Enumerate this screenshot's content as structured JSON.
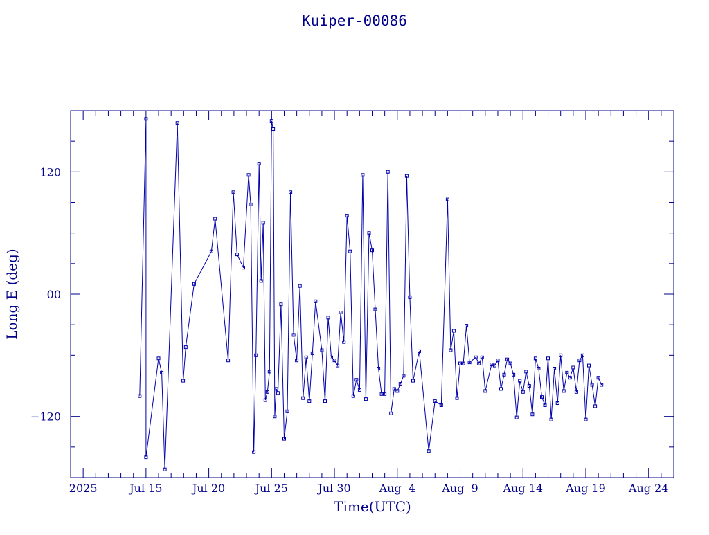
{
  "colors": {
    "axis": "#00008b",
    "series": "#0000aa",
    "background": "#ffffff"
  },
  "chart_data": {
    "type": "line",
    "title": "Kuiper-00086",
    "xlabel": "Time(UTC)",
    "ylabel": "Long E (deg)",
    "x_is_date": true,
    "xlim": [
      "2025-07-09",
      "2025-08-26"
    ],
    "ylim": [
      -180,
      180
    ],
    "y_wraps_at_180": true,
    "grid": false,
    "legend": "none",
    "marker": "square",
    "x_tick_labels": [
      {
        "date": "2025-07-10",
        "label": "2025"
      },
      {
        "date": "2025-07-15",
        "label": "Jul 15"
      },
      {
        "date": "2025-07-20",
        "label": "Jul 20"
      },
      {
        "date": "2025-07-25",
        "label": "Jul 25"
      },
      {
        "date": "2025-07-30",
        "label": "Jul 30"
      },
      {
        "date": "2025-08-04",
        "label": "Aug  4"
      },
      {
        "date": "2025-08-09",
        "label": "Aug  9"
      },
      {
        "date": "2025-08-14",
        "label": "Aug 14"
      },
      {
        "date": "2025-08-19",
        "label": "Aug 19"
      },
      {
        "date": "2025-08-24",
        "label": "Aug 24"
      }
    ],
    "y_tick_labels": [
      {
        "value": 120,
        "label": "120"
      },
      {
        "value": 0,
        "label": "00"
      },
      {
        "value": -120,
        "label": "−120"
      }
    ],
    "series": [
      {
        "x": [
          "2025-07-14 12:00",
          "2025-07-15 00:00",
          "2025-07-15 00:05",
          "2025-07-16 00:00",
          "2025-07-16 06:00",
          "2025-07-16 12:00",
          "2025-07-17 12:00",
          "2025-07-17 23:00",
          "2025-07-18 04:00",
          "2025-07-18 20:00",
          "2025-07-20 05:00",
          "2025-07-20 12:00",
          "2025-07-21 13:00",
          "2025-07-21 23:00",
          "2025-07-22 06:00",
          "2025-07-22 18:00",
          "2025-07-23 04:00",
          "2025-07-23 08:00",
          "2025-07-23 14:00",
          "2025-07-23 18:00",
          "2025-07-24 00:00",
          "2025-07-24 04:00",
          "2025-07-24 08:00",
          "2025-07-24 12:00",
          "2025-07-24 16:00",
          "2025-07-24 20:00",
          "2025-07-25 00:00",
          "2025-07-25 03:00",
          "2025-07-25 06:00",
          "2025-07-25 09:00",
          "2025-07-25 12:00",
          "2025-07-25 18:00",
          "2025-07-26 00:00",
          "2025-07-26 06:00",
          "2025-07-26 12:00",
          "2025-07-26 18:00",
          "2025-07-27 00:00",
          "2025-07-27 06:00",
          "2025-07-27 12:00",
          "2025-07-27 18:00",
          "2025-07-28 00:00",
          "2025-07-28 06:00",
          "2025-07-28 12:00",
          "2025-07-29 00:00",
          "2025-07-29 06:00",
          "2025-07-29 12:00",
          "2025-07-29 18:00",
          "2025-07-30 00:00",
          "2025-07-30 06:00",
          "2025-07-30 12:00",
          "2025-07-30 18:00",
          "2025-07-31 00:00",
          "2025-07-31 06:00",
          "2025-07-31 12:00",
          "2025-07-31 18:00",
          "2025-08-01 00:00",
          "2025-08-01 06:00",
          "2025-08-01 12:00",
          "2025-08-01 18:00",
          "2025-08-02 00:00",
          "2025-08-02 06:00",
          "2025-08-02 12:00",
          "2025-08-02 18:00",
          "2025-08-03 00:00",
          "2025-08-03 06:00",
          "2025-08-03 12:00",
          "2025-08-03 18:00",
          "2025-08-04 00:00",
          "2025-08-04 06:00",
          "2025-08-04 12:00",
          "2025-08-04 18:00",
          "2025-08-05 00:00",
          "2025-08-05 06:00",
          "2025-08-05 18:00",
          "2025-08-06 12:00",
          "2025-08-07 00:00",
          "2025-08-07 12:00",
          "2025-08-08 00:00",
          "2025-08-08 06:00",
          "2025-08-08 12:00",
          "2025-08-08 18:00",
          "2025-08-09 00:00",
          "2025-08-09 06:00",
          "2025-08-09 12:00",
          "2025-08-09 18:00",
          "2025-08-10 06:00",
          "2025-08-10 12:00",
          "2025-08-10 18:00",
          "2025-08-11 00:00",
          "2025-08-11 12:00",
          "2025-08-11 18:00",
          "2025-08-12 00:00",
          "2025-08-12 06:00",
          "2025-08-12 12:00",
          "2025-08-12 18:00",
          "2025-08-13 00:00",
          "2025-08-13 06:00",
          "2025-08-13 12:00",
          "2025-08-13 18:00",
          "2025-08-14 00:00",
          "2025-08-14 06:00",
          "2025-08-14 12:00",
          "2025-08-14 18:00",
          "2025-08-15 00:00",
          "2025-08-15 06:00",
          "2025-08-15 12:00",
          "2025-08-15 18:00",
          "2025-08-16 00:00",
          "2025-08-16 06:00",
          "2025-08-16 12:00",
          "2025-08-16 18:00",
          "2025-08-17 00:00",
          "2025-08-17 06:00",
          "2025-08-17 12:00",
          "2025-08-17 18:00",
          "2025-08-18 00:00",
          "2025-08-18 06:00",
          "2025-08-18 12:00",
          "2025-08-18 18:00",
          "2025-08-19 00:00",
          "2025-08-19 06:00",
          "2025-08-19 12:00",
          "2025-08-19 18:00",
          "2025-08-20 00:00",
          "2025-08-20 06:00"
        ],
        "values": [
          -100,
          172,
          -160,
          -63,
          -77,
          -172,
          168,
          -85,
          -52,
          10,
          42,
          74,
          -65,
          100,
          39,
          26,
          117,
          88,
          -155,
          -60,
          128,
          13,
          70,
          -104,
          -96,
          -76,
          170,
          162,
          -120,
          -93,
          -97,
          -10,
          -142,
          -115,
          100,
          -40,
          -65,
          8,
          -102,
          -62,
          -105,
          -58,
          -7,
          -55,
          -105,
          -23,
          -62,
          -65,
          -70,
          -18,
          -47,
          77,
          42,
          -100,
          -84,
          -94,
          117,
          -103,
          60,
          43,
          -15,
          -73,
          -98,
          -98,
          120,
          -117,
          -93,
          -95,
          -88,
          -80,
          116,
          -3,
          -85,
          -56,
          -154,
          -105,
          -109,
          93,
          -55,
          -36,
          -102,
          -68,
          -68,
          -31,
          -67,
          -62,
          -68,
          -62,
          -95,
          -69,
          -70,
          -65,
          -93,
          -79,
          -64,
          -68,
          -79,
          -121,
          -85,
          -96,
          -76,
          -90,
          -118,
          -63,
          -73,
          -101,
          -109,
          -63,
          -123,
          -73,
          -107,
          -60,
          -95,
          -77,
          -82,
          -72,
          -96,
          -65,
          -60,
          -123,
          -70,
          -89,
          -110,
          -82,
          -89
        ]
      }
    ]
  }
}
